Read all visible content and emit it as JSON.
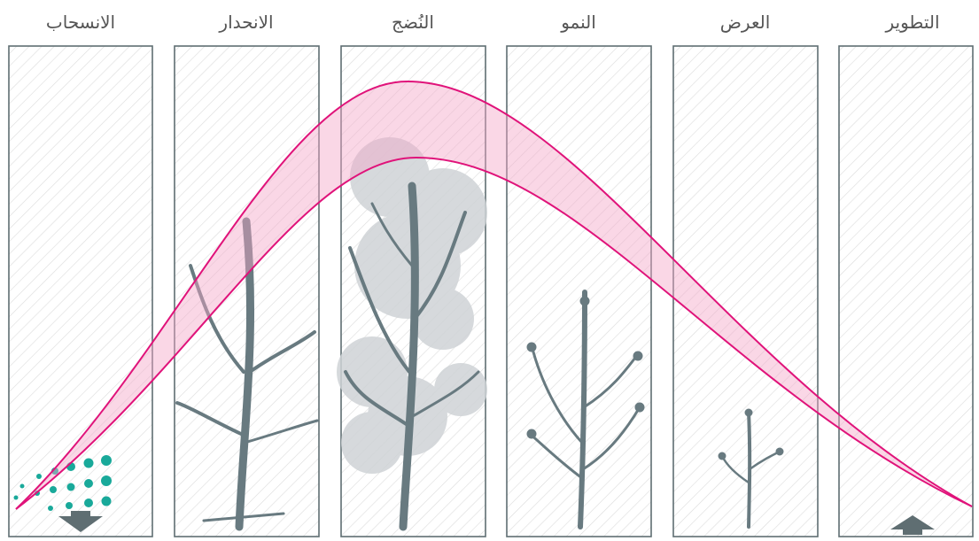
{
  "stages": [
    "التطوير",
    "العرض",
    "النمو",
    "النُضج",
    "الانحدار",
    "الانسحاب"
  ]
}
